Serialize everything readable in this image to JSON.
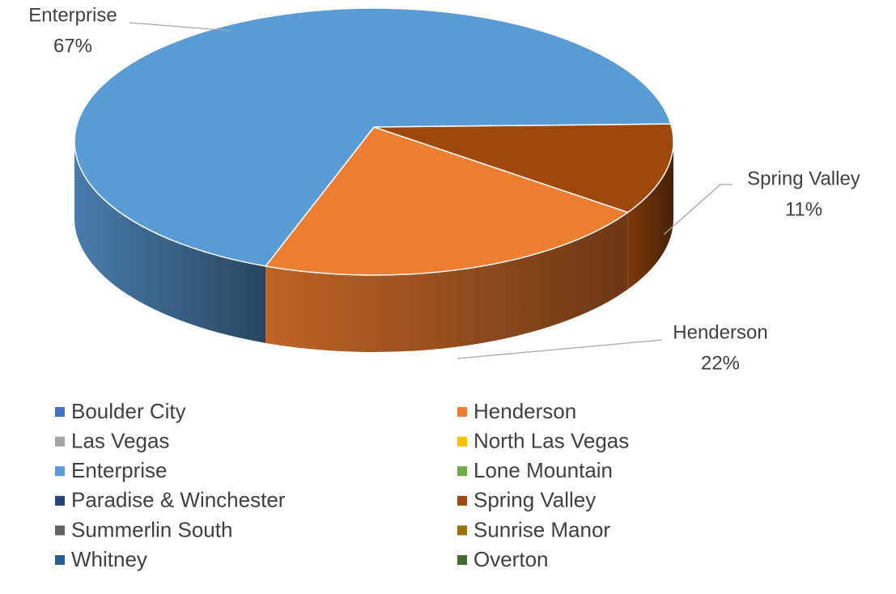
{
  "chart_data": {
    "type": "pie",
    "categories": [
      "Boulder City",
      "Henderson",
      "Las Vegas",
      "North Las Vegas",
      "Enterprise",
      "Lone Mountain",
      "Paradise & Winchester",
      "Spring Valley",
      "Summerlin South",
      "Sunrise Manor",
      "Whitney",
      "Overton"
    ],
    "values": [
      0,
      22,
      0,
      0,
      67,
      0,
      0,
      11,
      0,
      0,
      0,
      0
    ],
    "value_labels": [
      null,
      "22%",
      null,
      null,
      "67%",
      null,
      null,
      "11%",
      null,
      null,
      null,
      null
    ],
    "colors": [
      "#4472c4",
      "#ed7d31",
      "#a5a5a5",
      "#ffc000",
      "#5b9bd5",
      "#70ad47",
      "#264478",
      "#9e480e",
      "#636363",
      "#997300",
      "#255e91",
      "#43682b"
    ],
    "legend": "bottom"
  }
}
